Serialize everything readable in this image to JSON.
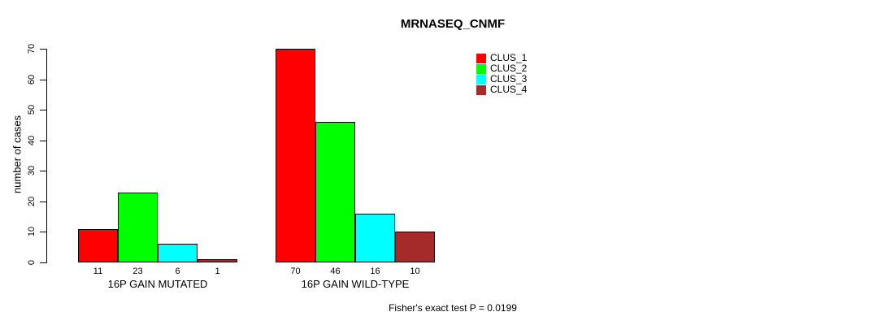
{
  "chart_data": {
    "type": "bar",
    "title": "MRNASEQ_CNMF",
    "ylabel": "number of cases",
    "xlabel": "",
    "categories": [
      "16P GAIN MUTATED",
      "16P GAIN WILD-TYPE"
    ],
    "series": [
      {
        "name": "CLUS_1",
        "color": "#FF0000",
        "values": [
          11,
          70
        ]
      },
      {
        "name": "CLUS_2",
        "color": "#00FF00",
        "values": [
          23,
          46
        ]
      },
      {
        "name": "CLUS_3",
        "color": "#00FFFF",
        "values": [
          6,
          16
        ]
      },
      {
        "name": "CLUS_4",
        "color": "#A52A2A",
        "values": [
          1,
          10
        ]
      }
    ],
    "yticks": [
      0,
      10,
      20,
      30,
      40,
      50,
      60,
      70
    ],
    "ylim": [
      0,
      70
    ],
    "grid": false,
    "bar_value_labels_shown": true,
    "legend_position": "top-right",
    "legend_entries": [
      "CLUS_1",
      "CLUS_2",
      "CLUS_3",
      "CLUS_4"
    ],
    "annotation": "Fisher's exact test P = 0.0199",
    "bar_border_color": "#000000",
    "background_color": "#FFFFFF",
    "text_color": "#000000"
  }
}
